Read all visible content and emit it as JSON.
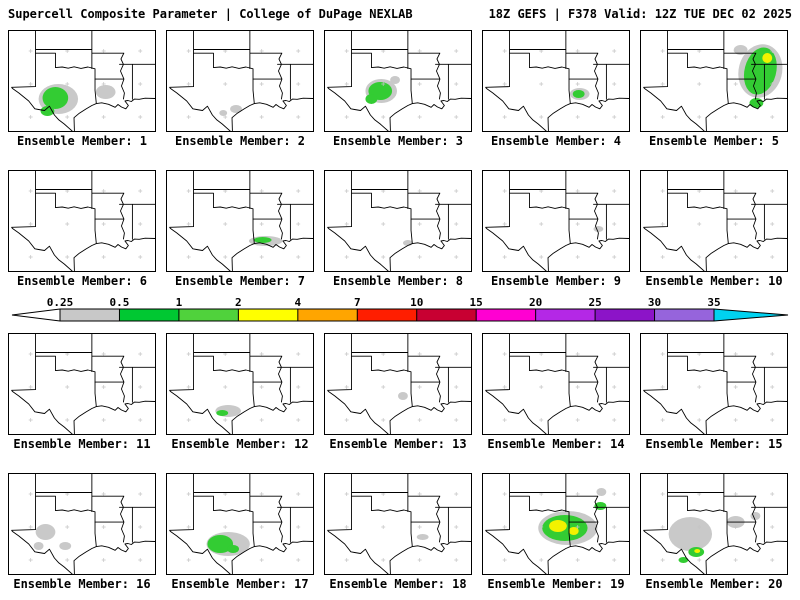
{
  "header": {
    "title_left": "Supercell Composite Parameter | College of DuPage NEXLAB",
    "title_right": "18Z GEFS | F378 Valid: 12Z TUE DEC 02 2025"
  },
  "colorbar": {
    "ticks": [
      "0.25",
      "0.5",
      "1",
      "2",
      "4",
      "7",
      "10",
      "15",
      "20",
      "25",
      "30",
      "35"
    ],
    "segment_colors": [
      "#c8c8c8",
      "#00c832",
      "#50d23c",
      "#ffff00",
      "#ffa500",
      "#ff1e00",
      "#c80032",
      "#ff00d2",
      "#b428e6",
      "#8c14c8",
      "#9664dc"
    ],
    "left_arrow_color": "#ffffff",
    "right_arrow_color": "#00d2f0"
  },
  "map_palette": {
    "gray": "#c9c9c9",
    "green": "#33cc33",
    "yellow": "#f2f200"
  },
  "panels": {
    "label_prefix": "Ensemble Member:",
    "members": [
      {
        "id": 1,
        "label": "Ensemble Member: 1",
        "blobs": [
          [
            "gray",
            50,
            68,
            20,
            15,
            0
          ],
          [
            "green",
            47,
            67,
            13,
            11,
            0
          ],
          [
            "green",
            39,
            80,
            7,
            5,
            0
          ],
          [
            "gray",
            98,
            61,
            10,
            7,
            0
          ]
        ]
      },
      {
        "id": 2,
        "label": "Ensemble Member: 2",
        "blobs": [
          [
            "gray",
            70,
            78,
            6,
            4,
            0
          ],
          [
            "gray",
            57,
            82,
            4,
            3,
            0
          ]
        ]
      },
      {
        "id": 3,
        "label": "Ensemble Member: 3",
        "blobs": [
          [
            "gray",
            57,
            60,
            16,
            12,
            0
          ],
          [
            "green",
            56,
            60,
            12,
            9,
            0
          ],
          [
            "green",
            47,
            68,
            6,
            5,
            0
          ],
          [
            "gray",
            71,
            49,
            5,
            4,
            0
          ]
        ]
      },
      {
        "id": 4,
        "label": "Ensemble Member: 4",
        "blobs": [
          [
            "gray",
            98,
            63,
            10,
            6,
            0
          ],
          [
            "green",
            97,
            63,
            6,
            4,
            0
          ]
        ]
      },
      {
        "id": 5,
        "label": "Ensemble Member: 5",
        "blobs": [
          [
            "gray",
            121,
            40,
            22,
            27,
            15
          ],
          [
            "green",
            121,
            40,
            16,
            24,
            15
          ],
          [
            "yellow",
            128,
            27,
            5,
            5,
            0
          ],
          [
            "green",
            117,
            72,
            7,
            5,
            0
          ],
          [
            "gray",
            101,
            19,
            7,
            5,
            0
          ]
        ]
      },
      {
        "id": 6,
        "label": "Ensemble Member: 6",
        "blobs": []
      },
      {
        "id": 7,
        "label": "Ensemble Member: 7",
        "blobs": [
          [
            "gray",
            100,
            70,
            17,
            5,
            0
          ],
          [
            "green",
            97,
            69,
            9,
            3,
            0
          ]
        ]
      },
      {
        "id": 8,
        "label": "Ensemble Member: 8",
        "blobs": [
          [
            "gray",
            84,
            72,
            5,
            3,
            0
          ]
        ]
      },
      {
        "id": 9,
        "label": "Ensemble Member: 9",
        "blobs": [
          [
            "gray",
            117,
            58,
            5,
            3,
            0
          ]
        ]
      },
      {
        "id": 10,
        "label": "Ensemble Member: 10",
        "blobs": []
      },
      {
        "id": 11,
        "label": "Ensemble Member: 11",
        "blobs": []
      },
      {
        "id": 12,
        "label": "Ensemble Member: 12",
        "blobs": [
          [
            "gray",
            62,
            77,
            13,
            6,
            0
          ],
          [
            "green",
            56,
            79,
            6,
            3,
            0
          ]
        ]
      },
      {
        "id": 13,
        "label": "Ensemble Member: 13",
        "blobs": [
          [
            "gray",
            79,
            62,
            5,
            4,
            0
          ]
        ]
      },
      {
        "id": 14,
        "label": "Ensemble Member: 14",
        "blobs": []
      },
      {
        "id": 15,
        "label": "Ensemble Member: 15",
        "blobs": []
      },
      {
        "id": 16,
        "label": "Ensemble Member: 16",
        "blobs": [
          [
            "gray",
            37,
            58,
            10,
            8,
            0
          ],
          [
            "gray",
            57,
            72,
            6,
            4,
            0
          ],
          [
            "gray",
            30,
            72,
            5,
            4,
            0
          ]
        ]
      },
      {
        "id": 17,
        "label": "Ensemble Member: 17",
        "blobs": [
          [
            "gray",
            62,
            70,
            22,
            12,
            0
          ],
          [
            "green",
            54,
            70,
            13,
            9,
            0
          ],
          [
            "green",
            67,
            75,
            6,
            4,
            0
          ]
        ]
      },
      {
        "id": 18,
        "label": "Ensemble Member: 18",
        "blobs": [
          [
            "gray",
            99,
            63,
            6,
            3,
            0
          ]
        ]
      },
      {
        "id": 19,
        "label": "Ensemble Member: 19",
        "blobs": [
          [
            "gray",
            86,
            54,
            30,
            17,
            0
          ],
          [
            "green",
            83,
            54,
            23,
            13,
            0
          ],
          [
            "yellow",
            76,
            52,
            9,
            6,
            0
          ],
          [
            "yellow",
            92,
            57,
            5,
            4,
            0
          ],
          [
            "green",
            119,
            32,
            6,
            4,
            0
          ],
          [
            "gray",
            120,
            18,
            5,
            4,
            0
          ]
        ]
      },
      {
        "id": 20,
        "label": "Ensemble Member: 20",
        "blobs": [
          [
            "gray",
            50,
            60,
            22,
            17,
            0
          ],
          [
            "gray",
            96,
            48,
            9,
            6,
            0
          ],
          [
            "gray",
            116,
            42,
            5,
            4,
            0
          ],
          [
            "green",
            56,
            78,
            8,
            5,
            0
          ],
          [
            "green",
            43,
            86,
            5,
            3,
            0
          ],
          [
            "yellow",
            57,
            77,
            3,
            2,
            0
          ]
        ]
      }
    ]
  }
}
